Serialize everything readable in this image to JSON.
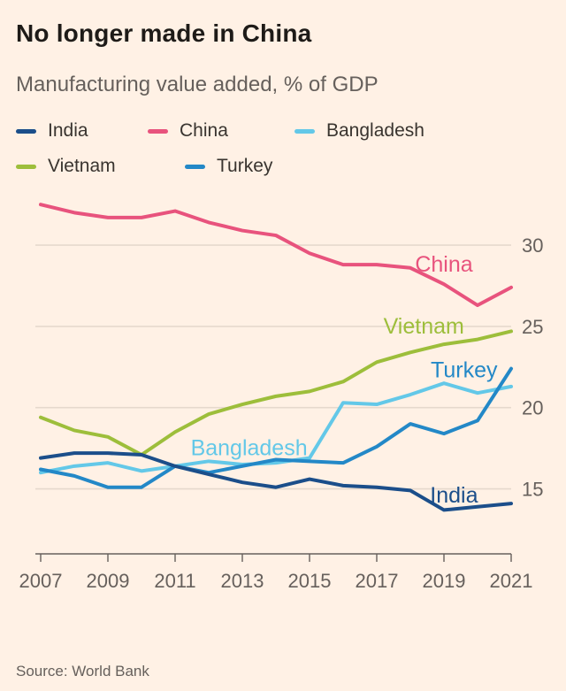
{
  "page": {
    "title": "No longer made in China",
    "subtitle": "Manufacturing value added, % of GDP",
    "source": "Source: World Bank"
  },
  "colors": {
    "background": "#FFF1E5",
    "title_text": "#1E1B18",
    "subtitle_text": "#66605C",
    "axis": "#66605C",
    "grid": "#E6D9CD"
  },
  "legend": [
    {
      "label": "India",
      "color": "#1B4E8A"
    },
    {
      "label": "China",
      "color": "#E8537D"
    },
    {
      "label": "Bangladesh",
      "color": "#63C8E8"
    },
    {
      "label": "Vietnam",
      "color": "#9DBE3B"
    },
    {
      "label": "Turkey",
      "color": "#2388C7"
    }
  ],
  "chart_data": {
    "type": "line",
    "title": "No longer made in China",
    "subtitle": "Manufacturing value added, % of GDP",
    "x": [
      2007,
      2008,
      2009,
      2010,
      2011,
      2012,
      2013,
      2014,
      2015,
      2016,
      2017,
      2018,
      2019,
      2020,
      2021
    ],
    "xticks": [
      2007,
      2009,
      2011,
      2013,
      2015,
      2017,
      2019,
      2021
    ],
    "yticks": [
      15,
      20,
      25,
      30
    ],
    "xlim": [
      2007,
      2021
    ],
    "ylim": [
      11,
      33
    ],
    "ylabel": "% of GDP",
    "legend_position": "top",
    "grid": "horizontal",
    "series": [
      {
        "name": "China",
        "color": "#E8537D",
        "values": [
          32.5,
          32.0,
          31.7,
          31.7,
          32.1,
          31.4,
          30.9,
          30.6,
          29.5,
          28.8,
          28.8,
          28.6,
          27.6,
          26.3,
          27.4
        ]
      },
      {
        "name": "Vietnam",
        "color": "#9DBE3B",
        "values": [
          19.4,
          18.6,
          18.2,
          17.1,
          18.5,
          19.6,
          20.2,
          20.7,
          21.0,
          21.6,
          22.8,
          23.4,
          23.9,
          24.2,
          24.7
        ]
      },
      {
        "name": "Bangladesh",
        "color": "#63C8E8",
        "values": [
          16.0,
          16.4,
          16.6,
          16.1,
          16.4,
          16.7,
          16.5,
          16.6,
          16.9,
          20.3,
          20.2,
          20.8,
          21.5,
          20.9,
          21.3
        ]
      },
      {
        "name": "Turkey",
        "color": "#2388C7",
        "values": [
          16.2,
          15.8,
          15.1,
          15.1,
          16.4,
          16.0,
          16.4,
          16.8,
          16.7,
          16.6,
          17.6,
          19.0,
          18.4,
          19.2,
          22.4
        ]
      },
      {
        "name": "India",
        "color": "#1B4E8A",
        "values": [
          16.9,
          17.2,
          17.2,
          17.1,
          16.4,
          15.9,
          15.4,
          15.1,
          15.6,
          15.2,
          15.1,
          14.9,
          13.7,
          13.9,
          14.1
        ]
      }
    ],
    "labels": [
      {
        "text": "China",
        "x": 2019.0,
        "y": 28.8,
        "color": "#E8537D"
      },
      {
        "text": "Vietnam",
        "x": 2018.4,
        "y": 25.0,
        "color": "#9DBE3B"
      },
      {
        "text": "Turkey",
        "x": 2019.6,
        "y": 22.3,
        "color": "#2388C7"
      },
      {
        "text": "Bangladesh",
        "x": 2013.2,
        "y": 17.5,
        "color": "#63C8E8"
      },
      {
        "text": "India",
        "x": 2019.3,
        "y": 14.6,
        "color": "#1B4E8A"
      }
    ]
  }
}
